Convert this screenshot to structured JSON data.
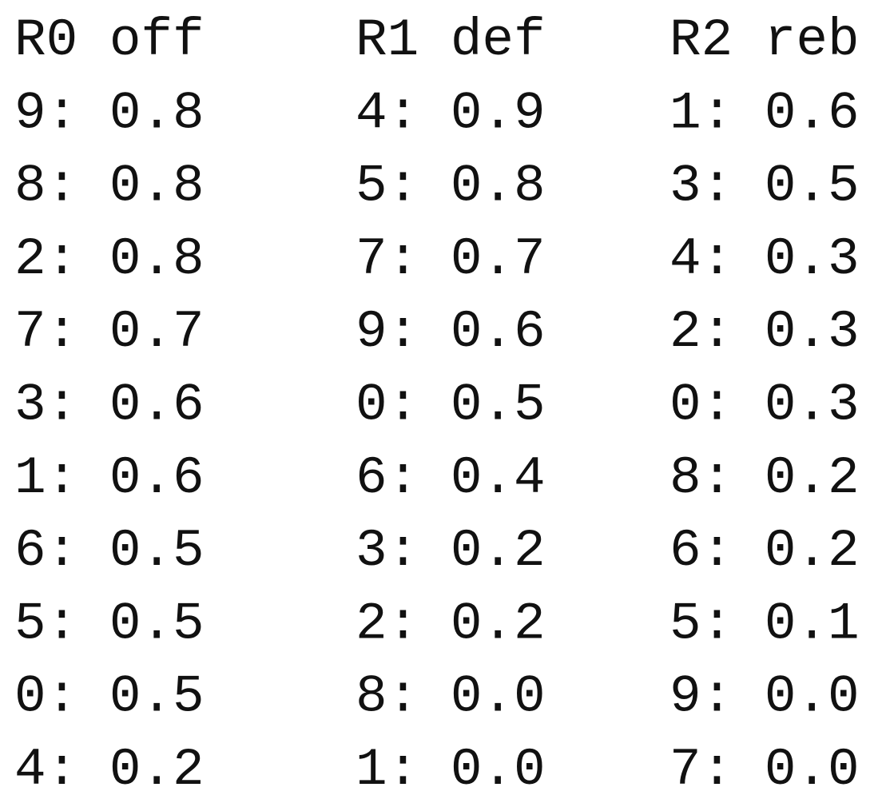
{
  "columns": [
    {
      "header": "R0 off",
      "rows": [
        "9: 0.8",
        "8: 0.8",
        "2: 0.8",
        "7: 0.7",
        "3: 0.6",
        "1: 0.6",
        "6: 0.5",
        "5: 0.5",
        "0: 0.5",
        "4: 0.2"
      ]
    },
    {
      "header": "R1 def",
      "rows": [
        "4: 0.9",
        "5: 0.8",
        "7: 0.7",
        "9: 0.6",
        "0: 0.5",
        "6: 0.4",
        "3: 0.2",
        "2: 0.2",
        "8: 0.0",
        "1: 0.0"
      ]
    },
    {
      "header": "R2 reb",
      "rows": [
        "1: 0.6",
        "3: 0.5",
        "4: 0.3",
        "2: 0.3",
        "0: 0.3",
        "8: 0.2",
        "6: 0.2",
        "5: 0.1",
        "9: 0.0",
        "7: 0.0"
      ]
    }
  ]
}
